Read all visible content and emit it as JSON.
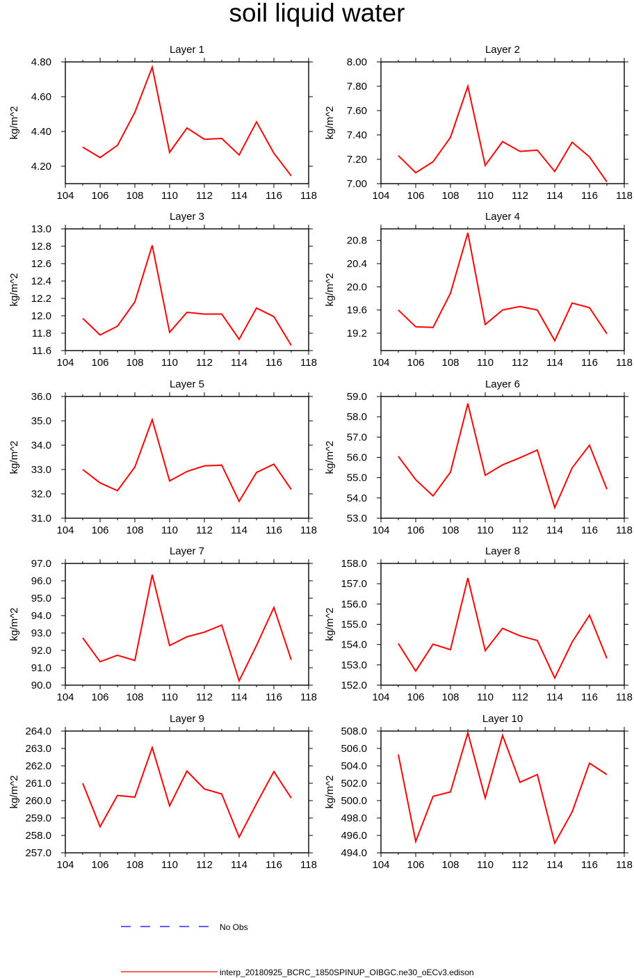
{
  "title": "soil liquid water",
  "colors": {
    "model": "#ff0000",
    "obs": "#0000ff",
    "axis": "#000000"
  },
  "legend": [
    {
      "label": "No Obs",
      "color": "#0000ff",
      "style": "dashed"
    },
    {
      "label": "interp_20180925_BCRC_1850SPINUP_OIBGC.ne30_oECv3.edison",
      "color": "#ff0000",
      "style": "solid"
    }
  ],
  "chart_data": [
    {
      "type": "line",
      "title": "Layer 1",
      "ylabel": "kg/m^2",
      "xlim": [
        104,
        118
      ],
      "ylim": [
        4.1,
        4.8
      ],
      "x": [
        105,
        106,
        107,
        108,
        109,
        110,
        111,
        112,
        113,
        114,
        115,
        116,
        117
      ],
      "xticks": [
        "104",
        "106",
        "108",
        "110",
        "112",
        "114",
        "116",
        "118"
      ],
      "yticks": [
        [
          "4.20",
          4.2
        ],
        [
          "4.40",
          4.4
        ],
        [
          "4.60",
          4.6
        ],
        [
          "4.80",
          4.8
        ]
      ],
      "series": [
        {
          "values": [
            4.31,
            4.25,
            4.32,
            4.51,
            4.77,
            4.28,
            4.42,
            4.355,
            4.36,
            4.265,
            4.455,
            4.275,
            4.145
          ]
        }
      ]
    },
    {
      "type": "line",
      "title": "Layer 2",
      "ylabel": "kg/m^2",
      "xlim": [
        104,
        118
      ],
      "ylim": [
        7.0,
        8.0
      ],
      "x": [
        105,
        106,
        107,
        108,
        109,
        110,
        111,
        112,
        113,
        114,
        115,
        116,
        117
      ],
      "xticks": [
        "104",
        "106",
        "108",
        "110",
        "112",
        "114",
        "116",
        "118"
      ],
      "yticks": [
        [
          "7.00",
          7.0
        ],
        [
          "7.20",
          7.2
        ],
        [
          "7.40",
          7.4
        ],
        [
          "7.60",
          7.6
        ],
        [
          "7.80",
          7.8
        ],
        [
          "8.00",
          8.0
        ]
      ],
      "series": [
        {
          "values": [
            7.23,
            7.09,
            7.18,
            7.38,
            7.8,
            7.15,
            7.345,
            7.265,
            7.275,
            7.1,
            7.34,
            7.22,
            7.015
          ]
        }
      ]
    },
    {
      "type": "line",
      "title": "Layer 3",
      "ylabel": "kg/m^2",
      "xlim": [
        104,
        118
      ],
      "ylim": [
        11.6,
        13.0
      ],
      "x": [
        105,
        106,
        107,
        108,
        109,
        110,
        111,
        112,
        113,
        114,
        115,
        116,
        117
      ],
      "xticks": [
        "104",
        "106",
        "108",
        "110",
        "112",
        "114",
        "116",
        "118"
      ],
      "yticks": [
        [
          "11.6",
          11.6
        ],
        [
          "11.8",
          11.8
        ],
        [
          "12.0",
          12.0
        ],
        [
          "12.2",
          12.2
        ],
        [
          "12.4",
          12.4
        ],
        [
          "12.6",
          12.6
        ],
        [
          "12.8",
          12.8
        ],
        [
          "13.0",
          13.0
        ]
      ],
      "series": [
        {
          "values": [
            11.97,
            11.78,
            11.88,
            12.16,
            12.81,
            11.81,
            12.04,
            12.02,
            12.02,
            11.73,
            12.09,
            11.99,
            11.66
          ]
        }
      ]
    },
    {
      "type": "line",
      "title": "Layer 4",
      "ylabel": "kg/m^2",
      "xlim": [
        104,
        118
      ],
      "ylim": [
        18.9,
        21.0
      ],
      "x": [
        105,
        106,
        107,
        108,
        109,
        110,
        111,
        112,
        113,
        114,
        115,
        116,
        117
      ],
      "xticks": [
        "104",
        "106",
        "108",
        "110",
        "112",
        "114",
        "116",
        "118"
      ],
      "yticks": [
        [
          "19.2",
          19.2
        ],
        [
          "19.6",
          19.6
        ],
        [
          "20.0",
          20.0
        ],
        [
          "20.4",
          20.4
        ],
        [
          "20.8",
          20.8
        ]
      ],
      "series": [
        {
          "values": [
            19.6,
            19.31,
            19.3,
            19.89,
            20.93,
            19.35,
            19.6,
            19.66,
            19.6,
            19.07,
            19.72,
            19.64,
            19.19
          ]
        }
      ]
    },
    {
      "type": "line",
      "title": "Layer 5",
      "ylabel": "kg/m^2",
      "xlim": [
        104,
        118
      ],
      "ylim": [
        31.0,
        36.0
      ],
      "x": [
        105,
        106,
        107,
        108,
        109,
        110,
        111,
        112,
        113,
        114,
        115,
        116,
        117
      ],
      "xticks": [
        "104",
        "106",
        "108",
        "110",
        "112",
        "114",
        "116",
        "118"
      ],
      "yticks": [
        [
          "31.0",
          31.0
        ],
        [
          "32.0",
          32.0
        ],
        [
          "33.0",
          33.0
        ],
        [
          "34.0",
          34.0
        ],
        [
          "35.0",
          35.0
        ],
        [
          "36.0",
          36.0
        ]
      ],
      "series": [
        {
          "values": [
            33.0,
            32.45,
            32.13,
            33.1,
            35.05,
            32.53,
            32.92,
            33.15,
            33.18,
            31.69,
            32.88,
            33.22,
            32.18
          ]
        }
      ]
    },
    {
      "type": "line",
      "title": "Layer 6",
      "ylabel": "kg/m^2",
      "xlim": [
        104,
        118
      ],
      "ylim": [
        53.0,
        59.0
      ],
      "x": [
        105,
        106,
        107,
        108,
        109,
        110,
        111,
        112,
        113,
        114,
        115,
        116,
        117
      ],
      "xticks": [
        "104",
        "106",
        "108",
        "110",
        "112",
        "114",
        "116",
        "118"
      ],
      "yticks": [
        [
          "53.0",
          53.0
        ],
        [
          "54.0",
          54.0
        ],
        [
          "55.0",
          55.0
        ],
        [
          "56.0",
          56.0
        ],
        [
          "57.0",
          57.0
        ],
        [
          "58.0",
          58.0
        ],
        [
          "59.0",
          59.0
        ]
      ],
      "series": [
        {
          "values": [
            56.05,
            54.9,
            54.1,
            55.27,
            58.65,
            55.12,
            55.63,
            55.98,
            56.36,
            53.52,
            55.48,
            56.6,
            54.43
          ]
        }
      ]
    },
    {
      "type": "line",
      "title": "Layer 7",
      "ylabel": "kg/m^2",
      "xlim": [
        104,
        118
      ],
      "ylim": [
        90.0,
        97.0
      ],
      "x": [
        105,
        106,
        107,
        108,
        109,
        110,
        111,
        112,
        113,
        114,
        115,
        116,
        117
      ],
      "xticks": [
        "104",
        "106",
        "108",
        "110",
        "112",
        "114",
        "116",
        "118"
      ],
      "yticks": [
        [
          "90.0",
          90.0
        ],
        [
          "91.0",
          91.0
        ],
        [
          "92.0",
          92.0
        ],
        [
          "93.0",
          93.0
        ],
        [
          "94.0",
          94.0
        ],
        [
          "95.0",
          95.0
        ],
        [
          "96.0",
          96.0
        ],
        [
          "97.0",
          97.0
        ]
      ],
      "series": [
        {
          "values": [
            92.72,
            91.35,
            91.72,
            91.42,
            96.35,
            92.28,
            92.78,
            93.05,
            93.45,
            90.25,
            92.28,
            94.47,
            91.45
          ]
        }
      ]
    },
    {
      "type": "line",
      "title": "Layer 8",
      "ylabel": "kg/m^2",
      "xlim": [
        104,
        118
      ],
      "ylim": [
        152.0,
        158.0
      ],
      "x": [
        105,
        106,
        107,
        108,
        109,
        110,
        111,
        112,
        113,
        114,
        115,
        116,
        117
      ],
      "xticks": [
        "104",
        "106",
        "108",
        "110",
        "112",
        "114",
        "116",
        "118"
      ],
      "yticks": [
        [
          "152.0",
          152.0
        ],
        [
          "153.0",
          153.0
        ],
        [
          "154.0",
          154.0
        ],
        [
          "155.0",
          155.0
        ],
        [
          "156.0",
          156.0
        ],
        [
          "157.0",
          157.0
        ],
        [
          "158.0",
          158.0
        ]
      ],
      "series": [
        {
          "values": [
            154.05,
            152.7,
            154.02,
            153.75,
            157.28,
            153.7,
            154.8,
            154.43,
            154.2,
            152.35,
            154.12,
            155.45,
            153.32
          ]
        }
      ]
    },
    {
      "type": "line",
      "title": "Layer 9",
      "ylabel": "kg/m^2",
      "xlim": [
        104,
        118
      ],
      "ylim": [
        257.0,
        264.0
      ],
      "x": [
        105,
        106,
        107,
        108,
        109,
        110,
        111,
        112,
        113,
        114,
        115,
        116,
        117
      ],
      "xticks": [
        "104",
        "106",
        "108",
        "110",
        "112",
        "114",
        "116",
        "118"
      ],
      "yticks": [
        [
          "257.0",
          257.0
        ],
        [
          "258.0",
          258.0
        ],
        [
          "259.0",
          259.0
        ],
        [
          "260.0",
          260.0
        ],
        [
          "261.0",
          261.0
        ],
        [
          "262.0",
          262.0
        ],
        [
          "263.0",
          263.0
        ],
        [
          "264.0",
          264.0
        ]
      ],
      "series": [
        {
          "values": [
            261.0,
            258.5,
            260.3,
            260.2,
            263.05,
            259.7,
            261.7,
            260.67,
            260.38,
            257.9,
            259.83,
            261.67,
            260.15
          ]
        }
      ]
    },
    {
      "type": "line",
      "title": "Layer 10",
      "ylabel": "kg/m^2",
      "xlim": [
        104,
        118
      ],
      "ylim": [
        494.0,
        508.0
      ],
      "x": [
        105,
        106,
        107,
        108,
        109,
        110,
        111,
        112,
        113,
        114,
        115,
        116,
        117
      ],
      "xticks": [
        "104",
        "106",
        "108",
        "110",
        "112",
        "114",
        "116",
        "118"
      ],
      "yticks": [
        [
          "494.0",
          494.0
        ],
        [
          "496.0",
          496.0
        ],
        [
          "498.0",
          498.0
        ],
        [
          "500.0",
          500.0
        ],
        [
          "502.0",
          502.0
        ],
        [
          "504.0",
          504.0
        ],
        [
          "506.0",
          506.0
        ],
        [
          "508.0",
          508.0
        ]
      ],
      "series": [
        {
          "values": [
            505.3,
            495.3,
            500.5,
            501.0,
            507.8,
            500.3,
            507.5,
            502.1,
            503.0,
            495.1,
            498.7,
            504.3,
            503.0
          ]
        }
      ]
    }
  ]
}
